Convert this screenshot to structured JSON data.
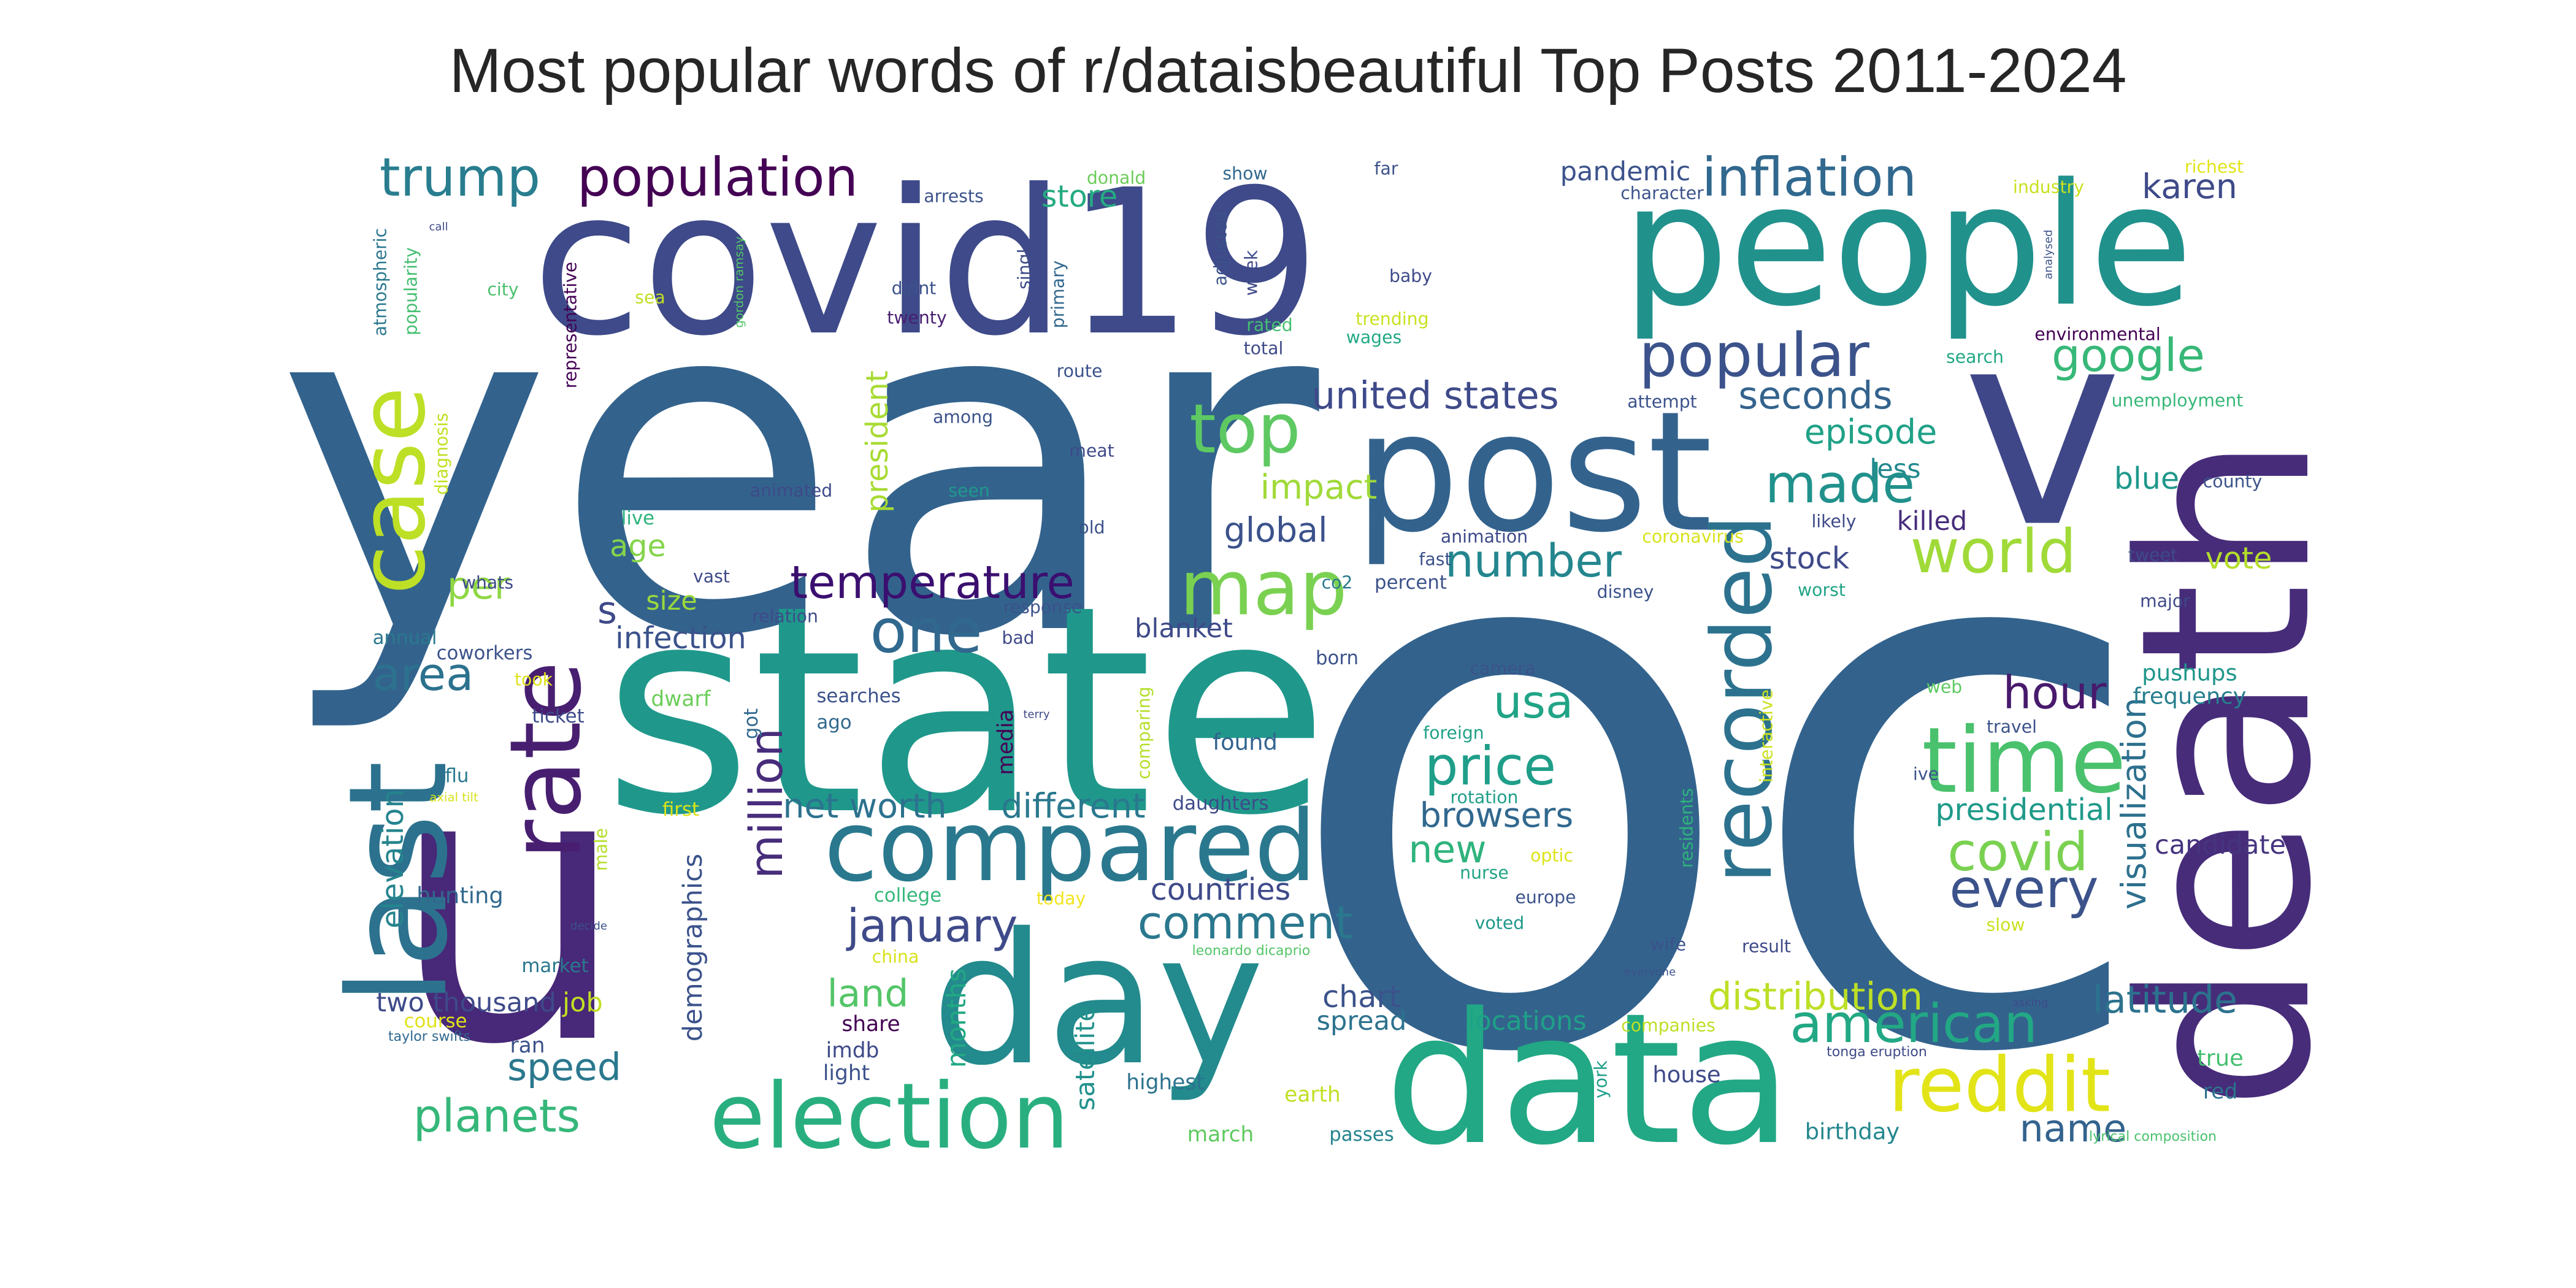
{
  "title": "Most popular words of r/dataisbeautiful Top Posts 2011-2024",
  "colormap": "viridis",
  "background": "#ffffff",
  "words": [
    {
      "text": "oc",
      "s": 1.0,
      "c": "#33638d"
    },
    {
      "text": "year",
      "s": 0.62,
      "c": "#33638d"
    },
    {
      "text": "covid19",
      "s": 0.38,
      "c": "#3e4a89"
    },
    {
      "text": "people",
      "s": 0.3,
      "c": "#21918c"
    },
    {
      "text": "u",
      "s": 0.5,
      "c": "#482878"
    },
    {
      "text": "state",
      "s": 0.38,
      "c": "#1f988b"
    },
    {
      "text": "death",
      "s": 0.31,
      "c": "#472c7a"
    },
    {
      "text": "post",
      "s": 0.22,
      "c": "#33638d"
    },
    {
      "text": "v",
      "s": 0.36,
      "c": "#3f4788"
    },
    {
      "text": "data",
      "s": 0.24,
      "c": "#22a884"
    },
    {
      "text": "day",
      "s": 0.24,
      "c": "#238a8d"
    },
    {
      "text": "last",
      "s": 0.18,
      "c": "#2c728e"
    },
    {
      "text": "case",
      "s": 0.12,
      "c": "#bddf26"
    },
    {
      "text": "rate",
      "s": 0.13,
      "c": "#481f70"
    },
    {
      "text": "compared",
      "s": 0.13,
      "c": "#2a788e"
    },
    {
      "text": "election",
      "s": 0.12,
      "c": "#29af7f"
    },
    {
      "text": "time",
      "s": 0.12,
      "c": "#4ac16d"
    },
    {
      "text": "recorded",
      "s": 0.11,
      "c": "#2c728e"
    },
    {
      "text": "reddit",
      "s": 0.1,
      "c": "#e2e418"
    },
    {
      "text": "map",
      "s": 0.1,
      "c": "#7ad151"
    },
    {
      "text": "top",
      "s": 0.09,
      "c": "#5ec962"
    },
    {
      "text": "popular",
      "s": 0.08,
      "c": "#3b528b"
    },
    {
      "text": "population",
      "s": 0.07,
      "c": "#440154"
    },
    {
      "text": "trump",
      "s": 0.07,
      "c": "#287d8e"
    },
    {
      "text": "inflation",
      "s": 0.07,
      "c": "#31688e"
    },
    {
      "text": "world",
      "s": 0.08,
      "c": "#a0da39"
    },
    {
      "text": "one",
      "s": 0.08,
      "c": "#31688e"
    },
    {
      "text": "made",
      "s": 0.07,
      "c": "#21918c"
    },
    {
      "text": "google",
      "s": 0.06,
      "c": "#37b878"
    },
    {
      "text": "temperature",
      "s": 0.06,
      "c": "#3b0f70"
    },
    {
      "text": "price",
      "s": 0.07,
      "c": "#1f9e89"
    },
    {
      "text": "covid",
      "s": 0.07,
      "c": "#7ad151"
    },
    {
      "text": "american",
      "s": 0.07,
      "c": "#22a884"
    },
    {
      "text": "every",
      "s": 0.07,
      "c": "#3b528b"
    },
    {
      "text": "area",
      "s": 0.06,
      "c": "#2c728e"
    },
    {
      "text": "january",
      "s": 0.06,
      "c": "#3e4a89"
    },
    {
      "text": "comment",
      "s": 0.06,
      "c": "#2a788e"
    },
    {
      "text": "hour",
      "s": 0.06,
      "c": "#481a6c"
    },
    {
      "text": "usa",
      "s": 0.06,
      "c": "#20a486"
    },
    {
      "text": "number",
      "s": 0.06,
      "c": "#24868e"
    },
    {
      "text": "planets",
      "s": 0.06,
      "c": "#35b779"
    },
    {
      "text": "million",
      "s": 0.06,
      "c": "#472d7b"
    },
    {
      "text": "name",
      "s": 0.05,
      "c": "#33638d"
    },
    {
      "text": "per",
      "s": 0.05,
      "c": "#8fd744"
    },
    {
      "text": "speed",
      "s": 0.05,
      "c": "#2a788e"
    },
    {
      "text": "land",
      "s": 0.05,
      "c": "#54c568"
    },
    {
      "text": "distribution",
      "s": 0.05,
      "c": "#bddf26"
    },
    {
      "text": "latitude",
      "s": 0.05,
      "c": "#2c728e"
    },
    {
      "text": "united states",
      "s": 0.05,
      "c": "#3e4a89"
    },
    {
      "text": "seconds",
      "s": 0.05,
      "c": "#33638d"
    },
    {
      "text": "episode",
      "s": 0.045,
      "c": "#1fa187"
    },
    {
      "text": "impact",
      "s": 0.045,
      "c": "#a0da39"
    },
    {
      "text": "global",
      "s": 0.045,
      "c": "#3b528b"
    },
    {
      "text": "browsers",
      "s": 0.045,
      "c": "#31688e"
    },
    {
      "text": "new",
      "s": 0.05,
      "c": "#2eb37c"
    },
    {
      "text": "visualization",
      "s": 0.045,
      "c": "#2d708e"
    },
    {
      "text": "karen",
      "s": 0.045,
      "c": "#3e4a89"
    },
    {
      "text": "presidential",
      "s": 0.04,
      "c": "#1f9a8a"
    },
    {
      "text": "net worth",
      "s": 0.045,
      "c": "#2c728e"
    },
    {
      "text": "different",
      "s": 0.045,
      "c": "#2a788e"
    },
    {
      "text": "countries",
      "s": 0.04,
      "c": "#3e4a89"
    },
    {
      "text": "elevation",
      "s": 0.04,
      "c": "#25848e"
    },
    {
      "text": "chart",
      "s": 0.04,
      "c": "#3b528b"
    },
    {
      "text": "store",
      "s": 0.04,
      "c": "#25ab82"
    },
    {
      "text": "s",
      "s": 0.05,
      "c": "#3e4a89"
    },
    {
      "text": "age",
      "s": 0.04,
      "c": "#84d44b"
    },
    {
      "text": "stock",
      "s": 0.04,
      "c": "#3e4a89"
    },
    {
      "text": "vote",
      "s": 0.04,
      "c": "#b5de2b"
    },
    {
      "text": "blue",
      "s": 0.04,
      "c": "#1f988b"
    },
    {
      "text": "president",
      "s": 0.04,
      "c": "#a8db34"
    },
    {
      "text": "infection",
      "s": 0.04,
      "c": "#3b528b"
    },
    {
      "text": "pandemic",
      "s": 0.035,
      "c": "#3b528b"
    },
    {
      "text": "killed",
      "s": 0.035,
      "c": "#472d7b"
    },
    {
      "text": "less",
      "s": 0.035,
      "c": "#23898e"
    },
    {
      "text": "spread",
      "s": 0.035,
      "c": "#2c728e"
    },
    {
      "text": "locations",
      "s": 0.035,
      "c": "#1fa187"
    },
    {
      "text": "job",
      "s": 0.035,
      "c": "#c2df23"
    },
    {
      "text": "candidate",
      "s": 0.035,
      "c": "#463480"
    },
    {
      "text": "demographics",
      "s": 0.035,
      "c": "#3b528b"
    },
    {
      "text": "satellite",
      "s": 0.035,
      "c": "#21918c"
    },
    {
      "text": "months",
      "s": 0.035,
      "c": "#22a884"
    },
    {
      "text": "size",
      "s": 0.035,
      "c": "#9bd93c"
    },
    {
      "text": "blanket",
      "s": 0.035,
      "c": "#3e4a89"
    },
    {
      "text": "two thousand",
      "s": 0.035,
      "c": "#3e4a89"
    },
    {
      "text": "hunting",
      "s": 0.03,
      "c": "#31688e"
    },
    {
      "text": "found",
      "s": 0.03,
      "c": "#32648e"
    },
    {
      "text": "pushups",
      "s": 0.03,
      "c": "#1f968b"
    },
    {
      "text": "frequency",
      "s": 0.03,
      "c": "#277f8e"
    },
    {
      "text": "true",
      "s": 0.03,
      "c": "#44bf70"
    },
    {
      "text": "red",
      "s": 0.028,
      "c": "#2c728e"
    },
    {
      "text": "birthday",
      "s": 0.03,
      "c": "#24868e"
    },
    {
      "text": "house",
      "s": 0.03,
      "c": "#3e4a89"
    },
    {
      "text": "highest",
      "s": 0.028,
      "c": "#2c728e"
    },
    {
      "text": "march",
      "s": 0.028,
      "c": "#60ca60"
    },
    {
      "text": "passes",
      "s": 0.025,
      "c": "#25848e"
    },
    {
      "text": "earth",
      "s": 0.028,
      "c": "#c2df23"
    },
    {
      "text": "light",
      "s": 0.028,
      "c": "#3b528b"
    },
    {
      "text": "share",
      "s": 0.028,
      "c": "#440154"
    },
    {
      "text": "imdb",
      "s": 0.028,
      "c": "#3e4a89"
    },
    {
      "text": "course",
      "s": 0.025,
      "c": "#e0e318"
    },
    {
      "text": "ran",
      "s": 0.028,
      "c": "#3b528b"
    },
    {
      "text": "market",
      "s": 0.025,
      "c": "#2a788e"
    },
    {
      "text": "college",
      "s": 0.025,
      "c": "#35b779"
    },
    {
      "text": "today",
      "s": 0.023,
      "c": "#f1e51d"
    },
    {
      "text": "china",
      "s": 0.023,
      "c": "#d8e219"
    },
    {
      "text": "daughters",
      "s": 0.025,
      "c": "#3e4a89"
    },
    {
      "text": "comparing",
      "s": 0.023,
      "c": "#b5de2b"
    },
    {
      "text": "media",
      "s": 0.028,
      "c": "#440154"
    },
    {
      "text": "got",
      "s": 0.025,
      "c": "#31688e"
    },
    {
      "text": "ticket",
      "s": 0.025,
      "c": "#3e4a89"
    },
    {
      "text": "dwarf",
      "s": 0.028,
      "c": "#6ccd5a"
    },
    {
      "text": "searches",
      "s": 0.025,
      "c": "#3b528b"
    },
    {
      "text": "ago",
      "s": 0.025,
      "c": "#31688e"
    },
    {
      "text": "flu",
      "s": 0.025,
      "c": "#2a788e"
    },
    {
      "text": "first",
      "s": 0.025,
      "c": "#dde318"
    },
    {
      "text": "male",
      "s": 0.023,
      "c": "#b5de2b"
    },
    {
      "text": "axial tilt",
      "s": 0.016,
      "c": "#d8e219"
    },
    {
      "text": "decide",
      "s": 0.013,
      "c": "#3b528b"
    },
    {
      "text": "taylor swifts",
      "s": 0.018,
      "c": "#31688e"
    },
    {
      "text": "annual",
      "s": 0.025,
      "c": "#2a788e"
    },
    {
      "text": "coworkers",
      "s": 0.025,
      "c": "#3b528b"
    },
    {
      "text": "took",
      "s": 0.023,
      "c": "#dde318"
    },
    {
      "text": "whats",
      "s": 0.023,
      "c": "#3e4a89"
    },
    {
      "text": "vast",
      "s": 0.023,
      "c": "#3e4a89"
    },
    {
      "text": "relation",
      "s": 0.023,
      "c": "#3e4a89"
    },
    {
      "text": "response",
      "s": 0.023,
      "c": "#3b528b"
    },
    {
      "text": "bad",
      "s": 0.023,
      "c": "#3e4a89"
    },
    {
      "text": "co2",
      "s": 0.023,
      "c": "#2a788e"
    },
    {
      "text": "born",
      "s": 0.025,
      "c": "#3b528b"
    },
    {
      "text": "percent",
      "s": 0.025,
      "c": "#3b528b"
    },
    {
      "text": "fast",
      "s": 0.023,
      "c": "#3b528b"
    },
    {
      "text": "animation",
      "s": 0.023,
      "c": "#3e4a89"
    },
    {
      "text": "coronavirus",
      "s": 0.023,
      "c": "#d8e219"
    },
    {
      "text": "likely",
      "s": 0.023,
      "c": "#3e4a89"
    },
    {
      "text": "disney",
      "s": 0.023,
      "c": "#3b528b"
    },
    {
      "text": "worst",
      "s": 0.023,
      "c": "#20a486"
    },
    {
      "text": "tweet",
      "s": 0.023,
      "c": "#3e4a89"
    },
    {
      "text": "major",
      "s": 0.023,
      "c": "#3e4a89"
    },
    {
      "text": "county",
      "s": 0.023,
      "c": "#3b528b"
    },
    {
      "text": "camera",
      "s": 0.023,
      "c": "#3b528b"
    },
    {
      "text": "foreign",
      "s": 0.023,
      "c": "#1fa187"
    },
    {
      "text": "rotation",
      "s": 0.023,
      "c": "#1f9e89"
    },
    {
      "text": "optic",
      "s": 0.023,
      "c": "#dde318"
    },
    {
      "text": "nurse",
      "s": 0.023,
      "c": "#20a486"
    },
    {
      "text": "europe",
      "s": 0.023,
      "c": "#3b528b"
    },
    {
      "text": "voted",
      "s": 0.023,
      "c": "#1f988b"
    },
    {
      "text": "leonardo dicaprio",
      "s": 0.018,
      "c": "#54c568"
    },
    {
      "text": "companies",
      "s": 0.023,
      "c": "#bddf26"
    },
    {
      "text": "residents",
      "s": 0.023,
      "c": "#2eb37c"
    },
    {
      "text": "interactive",
      "s": 0.023,
      "c": "#cae11f"
    },
    {
      "text": "york",
      "s": 0.023,
      "c": "#1f9e89"
    },
    {
      "text": "wife",
      "s": 0.023,
      "c": "#3b528b"
    },
    {
      "text": "result",
      "s": 0.023,
      "c": "#3e4a89"
    },
    {
      "text": "slow",
      "s": 0.023,
      "c": "#cae11f"
    },
    {
      "text": "web",
      "s": 0.023,
      "c": "#5ec962"
    },
    {
      "text": "travel",
      "s": 0.023,
      "c": "#3b528b"
    },
    {
      "text": "ive",
      "s": 0.023,
      "c": "#3b528b"
    },
    {
      "text": "everyone",
      "s": 0.013,
      "c": "#3b528b"
    },
    {
      "text": "tonga eruption",
      "s": 0.018,
      "c": "#3e4a89"
    },
    {
      "text": "asking",
      "s": 0.013,
      "c": "#3e4a89"
    },
    {
      "text": "lyrical composition",
      "s": 0.018,
      "c": "#4ac16d"
    },
    {
      "text": "terry",
      "s": 0.013,
      "c": "#3e4a89"
    },
    {
      "text": "live",
      "s": 0.025,
      "c": "#2eb37c"
    },
    {
      "text": "diagnosis",
      "s": 0.023,
      "c": "#c2df23"
    },
    {
      "text": "city",
      "s": 0.023,
      "c": "#4ac16d"
    },
    {
      "text": "sea",
      "s": 0.023,
      "c": "#c2df23"
    },
    {
      "text": "atmospheric",
      "s": 0.023,
      "c": "#2a788e"
    },
    {
      "text": "popularity",
      "s": 0.023,
      "c": "#44bf70"
    },
    {
      "text": "call",
      "s": 0.013,
      "c": "#3e4a89"
    },
    {
      "text": "gordon ramsay",
      "s": 0.016,
      "c": "#54c568"
    },
    {
      "text": "representative",
      "s": 0.023,
      "c": "#440154"
    },
    {
      "text": "arrests",
      "s": 0.023,
      "c": "#3b528b"
    },
    {
      "text": "didnt",
      "s": 0.023,
      "c": "#3b528b"
    },
    {
      "text": "twenty",
      "s": 0.023,
      "c": "#481f70"
    },
    {
      "text": "single",
      "s": 0.023,
      "c": "#3e4a89"
    },
    {
      "text": "primary",
      "s": 0.023,
      "c": "#31688e"
    },
    {
      "text": "among",
      "s": 0.023,
      "c": "#3b528b"
    },
    {
      "text": "animated",
      "s": 0.023,
      "c": "#3e4a89"
    },
    {
      "text": "seen",
      "s": 0.023,
      "c": "#1f988b"
    },
    {
      "text": "meat",
      "s": 0.023,
      "c": "#3e4a89"
    },
    {
      "text": "old",
      "s": 0.023,
      "c": "#3b528b"
    },
    {
      "text": "route",
      "s": 0.023,
      "c": "#3b528b"
    },
    {
      "text": "donald",
      "s": 0.023,
      "c": "#6ccd5a"
    },
    {
      "text": "show",
      "s": 0.023,
      "c": "#31688e"
    },
    {
      "text": "adjusted",
      "s": 0.023,
      "c": "#3b528b"
    },
    {
      "text": "week",
      "s": 0.023,
      "c": "#3e4a89"
    },
    {
      "text": "rated",
      "s": 0.023,
      "c": "#44bf70"
    },
    {
      "text": "total",
      "s": 0.023,
      "c": "#3e4a89"
    },
    {
      "text": "far",
      "s": 0.023,
      "c": "#3b528b"
    },
    {
      "text": "baby",
      "s": 0.023,
      "c": "#3e4a89"
    },
    {
      "text": "trending",
      "s": 0.023,
      "c": "#cae11f"
    },
    {
      "text": "wages",
      "s": 0.023,
      "c": "#22a884"
    },
    {
      "text": "character",
      "s": 0.023,
      "c": "#3b528b"
    },
    {
      "text": "attempt",
      "s": 0.023,
      "c": "#3b528b"
    },
    {
      "text": "industry",
      "s": 0.023,
      "c": "#cae11f"
    },
    {
      "text": "richest",
      "s": 0.023,
      "c": "#e2e418"
    },
    {
      "text": "analysed",
      "s": 0.013,
      "c": "#3b528b"
    },
    {
      "text": "environmental",
      "s": 0.023,
      "c": "#440154"
    },
    {
      "text": "search",
      "s": 0.023,
      "c": "#22a884"
    },
    {
      "text": "unemployment",
      "s": 0.023,
      "c": "#37b878"
    }
  ]
}
